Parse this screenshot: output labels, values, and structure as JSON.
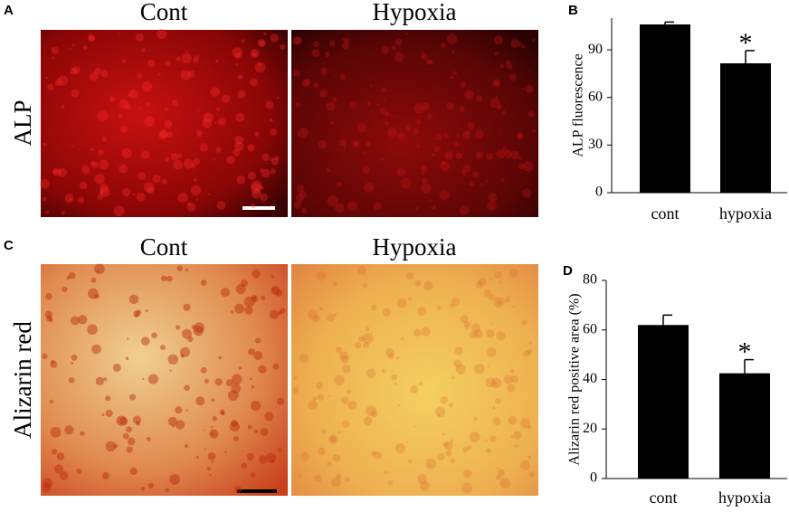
{
  "panels": [
    {
      "letter": "A",
      "side_label": "ALP",
      "images": [
        "Cont",
        "Hypoxia"
      ]
    },
    {
      "letter": "C",
      "side_label": "Alizarin red",
      "images": [
        "Cont",
        "Hypoxia"
      ]
    }
  ],
  "chart_data": [
    {
      "type": "bar",
      "panel_label": "B",
      "y_label": "ALP fluorescence",
      "categories": [
        "cont",
        "hypoxia"
      ],
      "values": [
        106,
        81.5
      ],
      "errors": [
        1.5,
        8
      ],
      "color": "#000000",
      "ylim": [
        0,
        110
      ],
      "yticks": [
        0,
        30,
        60,
        90
      ],
      "annotations": [
        {
          "text": "*",
          "category": "hypoxia"
        }
      ]
    },
    {
      "type": "bar",
      "panel_label": "D",
      "y_label": "Alizarin red positive area (%)",
      "categories": [
        "cont",
        "hypoxia"
      ],
      "values": [
        62,
        42.5
      ],
      "errors": [
        4,
        5.5
      ],
      "color": "#000000",
      "ylim": [
        0,
        80
      ],
      "yticks": [
        0,
        20,
        40,
        60,
        80
      ],
      "annotations": [
        {
          "text": "*",
          "category": "hypoxia"
        }
      ]
    }
  ]
}
